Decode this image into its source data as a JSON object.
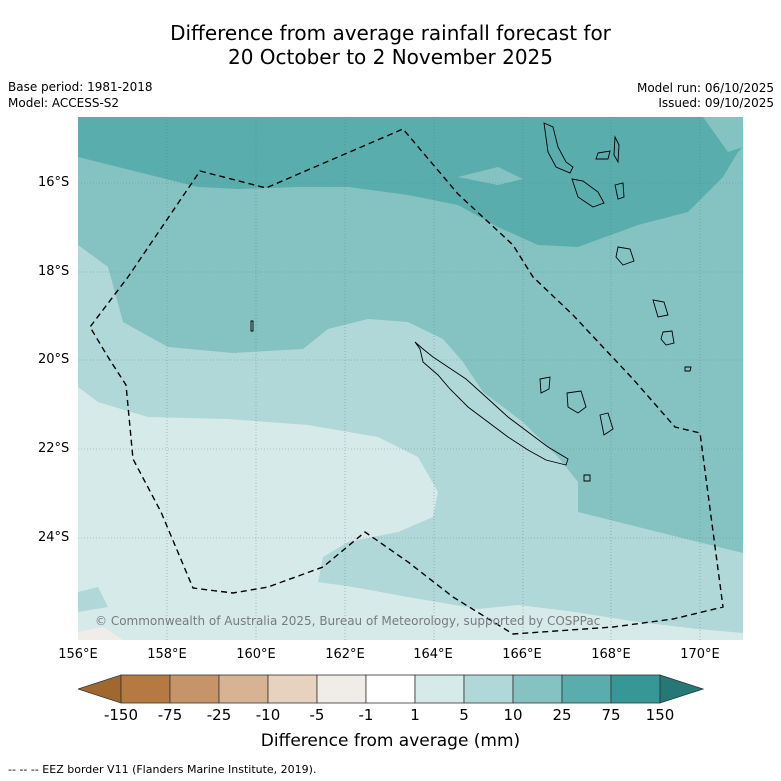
{
  "title": {
    "line1": "Difference from average rainfall forecast for",
    "line2": "20 October to 2 November 2025"
  },
  "meta": {
    "base_period": "Base period: 1981-2018",
    "model": "Model: ACCESS-S2",
    "model_run": "Model run: 06/10/2025",
    "issued": "Issued: 09/10/2025"
  },
  "axes": {
    "lat_labels": [
      "16°S",
      "18°S",
      "20°S",
      "22°S",
      "24°S"
    ],
    "lon_labels": [
      "156°E",
      "158°E",
      "160°E",
      "162°E",
      "164°E",
      "166°E",
      "168°E",
      "170°E"
    ]
  },
  "copyright": "© Commonwealth of Australia 2025, Bureau of Meteorology, supported by COSPPac",
  "legend": {
    "title": "Difference from average (mm)",
    "ticks": [
      "-150",
      "-75",
      "-25",
      "-10",
      "-5",
      "-1",
      "1",
      "5",
      "10",
      "25",
      "75",
      "150"
    ],
    "colors": [
      "#a0682f",
      "#b57a41",
      "#c59569",
      "#d6b393",
      "#e7d2bf",
      "#f0ece8",
      "#ffffff",
      "#d6eae9",
      "#b0d8d8",
      "#85c3c2",
      "#5aadad",
      "#359896",
      "#267877"
    ]
  },
  "footer": "--  --  -- EEZ border V11 (Flanders Marine Institute, 2019)."
}
